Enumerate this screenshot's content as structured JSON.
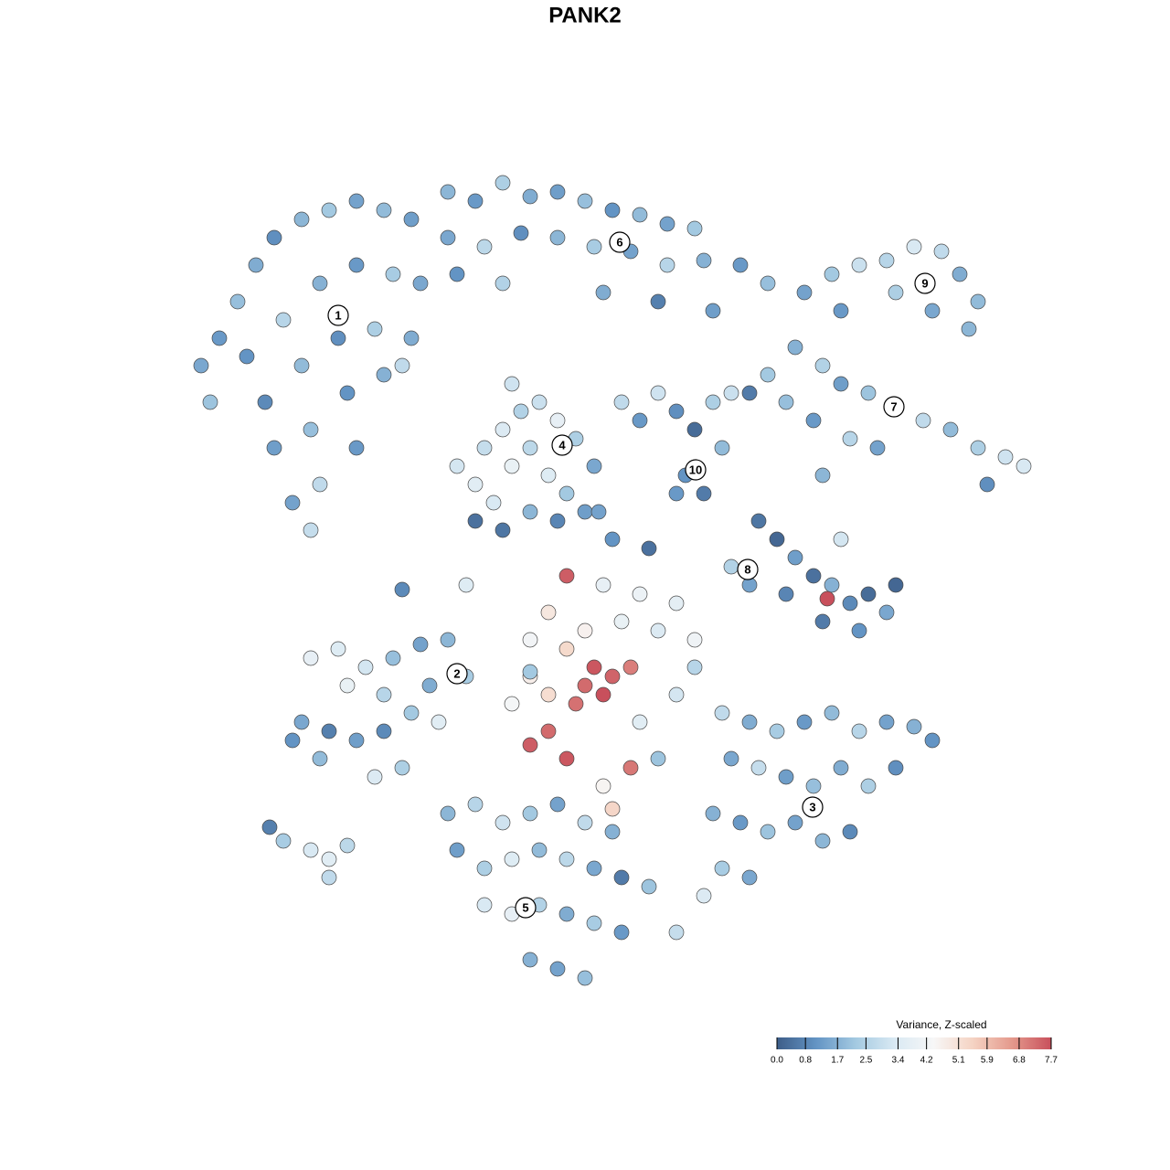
{
  "chart_data": {
    "type": "scatter",
    "title": "PANK2",
    "xlim": [
      0,
      930
    ],
    "ylim": [
      0,
      905
    ],
    "x": [
      20,
      40,
      60,
      80,
      100,
      130,
      160,
      190,
      220,
      250,
      30,
      70,
      110,
      150,
      190,
      230,
      260,
      90,
      130,
      170,
      210,
      250,
      100,
      140,
      180,
      220,
      120,
      150,
      190,
      140,
      290,
      320,
      350,
      380,
      410,
      440,
      470,
      500,
      530,
      560,
      290,
      330,
      370,
      410,
      450,
      490,
      530,
      570,
      610,
      640,
      300,
      350,
      460,
      520,
      580,
      680,
      710,
      740,
      770,
      800,
      830,
      850,
      870,
      720,
      780,
      820,
      860,
      670,
      700,
      720,
      750,
      780,
      810,
      840,
      870,
      900,
      920,
      660,
      690,
      730,
      760,
      620,
      640,
      700,
      880,
      300,
      320,
      330,
      350,
      370,
      390,
      410,
      430,
      450,
      320,
      340,
      360,
      380,
      400,
      420,
      440,
      350,
      380,
      410,
      360,
      480,
      500,
      520,
      540,
      560,
      580,
      550,
      570,
      590,
      600,
      630,
      650,
      670,
      690,
      710,
      730,
      750,
      770,
      780,
      700,
      740,
      620,
      600,
      660,
      720,
      705,
      420,
      460,
      500,
      540,
      400,
      440,
      480,
      520,
      560,
      380,
      420,
      450,
      470,
      440,
      460,
      400,
      380,
      430,
      490,
      490,
      400,
      380,
      420,
      360,
      500,
      540,
      560,
      460,
      470,
      520,
      140,
      170,
      200,
      230,
      260,
      290,
      310,
      180,
      220,
      270,
      130,
      160,
      190,
      220,
      250,
      150,
      210,
      240,
      120,
      280,
      590,
      620,
      650,
      680,
      710,
      740,
      770,
      800,
      820,
      600,
      630,
      660,
      690,
      720,
      750,
      780,
      580,
      610,
      640,
      670,
      700,
      730,
      590,
      620,
      570,
      290,
      320,
      350,
      380,
      410,
      440,
      470,
      300,
      330,
      360,
      390,
      420,
      450,
      480,
      510,
      330,
      360,
      390,
      420,
      450,
      480,
      540,
      380,
      410,
      440,
      95,
      110,
      140,
      160,
      180,
      160,
      240,
      310,
      455,
      510,
      470,
      240,
      380,
      540
    ],
    "y": [
      690,
      720,
      760,
      800,
      830,
      850,
      860,
      870,
      860,
      850,
      650,
      700,
      740,
      780,
      800,
      790,
      780,
      650,
      690,
      720,
      730,
      720,
      600,
      620,
      660,
      680,
      540,
      560,
      600,
      510,
      880,
      870,
      890,
      875,
      880,
      870,
      860,
      855,
      845,
      840,
      830,
      820,
      835,
      830,
      820,
      815,
      800,
      805,
      800,
      780,
      790,
      780,
      770,
      760,
      750,
      770,
      790,
      800,
      805,
      820,
      815,
      790,
      760,
      750,
      770,
      750,
      730,
      710,
      690,
      670,
      660,
      645,
      630,
      620,
      600,
      590,
      580,
      650,
      630,
      610,
      600,
      660,
      680,
      570,
      560,
      580,
      560,
      600,
      620,
      640,
      650,
      630,
      610,
      580,
      520,
      540,
      580,
      600,
      570,
      550,
      530,
      510,
      530,
      520,
      670,
      650,
      630,
      660,
      640,
      620,
      650,
      570,
      550,
      600,
      660,
      520,
      500,
      480,
      460,
      450,
      430,
      440,
      420,
      450,
      410,
      400,
      450,
      470,
      440,
      500,
      435,
      460,
      450,
      440,
      430,
      420,
      400,
      410,
      400,
      390,
      390,
      380,
      360,
      350,
      340,
      330,
      330,
      350,
      320,
      360,
      250,
      290,
      275,
      260,
      320,
      300,
      330,
      360,
      230,
      205,
      260,
      370,
      380,
      360,
      370,
      385,
      390,
      350,
      340,
      330,
      340,
      300,
      290,
      280,
      290,
      310,
      260,
      240,
      250,
      280,
      300,
      310,
      300,
      290,
      300,
      310,
      290,
      300,
      295,
      280,
      260,
      250,
      240,
      230,
      250,
      230,
      250,
      200,
      190,
      180,
      190,
      170,
      180,
      140,
      130,
      110,
      200,
      210,
      190,
      200,
      210,
      190,
      180,
      160,
      140,
      150,
      160,
      150,
      140,
      130,
      120,
      100,
      90,
      100,
      90,
      80,
      70,
      70,
      40,
      30,
      20,
      185,
      170,
      160,
      150,
      165,
      130,
      445,
      450,
      530,
      490,
      500,
      690,
      355,
      550
    ],
    "values": [
      1.5,
      1.2,
      2.0,
      1.6,
      1.0,
      1.8,
      2.2,
      1.4,
      1.9,
      1.3,
      2.1,
      1.1,
      2.6,
      1.7,
      1.2,
      2.3,
      1.5,
      0.9,
      1.9,
      1.0,
      2.4,
      1.6,
      1.3,
      2.0,
      1.1,
      1.7,
      1.4,
      2.8,
      1.2,
      2.9,
      1.8,
      1.2,
      2.4,
      1.6,
      1.3,
      2.0,
      1.1,
      1.9,
      1.4,
      2.2,
      1.5,
      2.7,
      1.0,
      1.8,
      2.3,
      1.4,
      2.6,
      1.7,
      1.2,
      2.0,
      1.1,
      2.5,
      1.6,
      0.7,
      1.3,
      1.4,
      2.2,
      3.0,
      2.6,
      3.3,
      2.8,
      1.6,
      1.9,
      1.2,
      2.4,
      1.5,
      1.8,
      1.7,
      2.5,
      1.3,
      2.1,
      1.5,
      2.8,
      1.9,
      2.4,
      3.1,
      3.3,
      2.0,
      1.2,
      2.6,
      1.4,
      0.6,
      2.2,
      1.8,
      1.0,
      3.2,
      3.6,
      2.9,
      3.4,
      2.5,
      3.0,
      3.8,
      2.4,
      1.5,
      0.4,
      3.3,
      3.9,
      2.7,
      3.5,
      2.2,
      1.3,
      0.5,
      1.8,
      0.8,
      3.1,
      2.8,
      1.2,
      3.1,
      1.0,
      0.3,
      2.4,
      1.1,
      0.6,
      1.9,
      3.0,
      0.5,
      0.2,
      1.3,
      0.4,
      1.7,
      0.9,
      0.3,
      1.5,
      0.2,
      0.6,
      1.1,
      1.4,
      2.5,
      0.8,
      3.2,
      7.7,
      7.5,
      3.8,
      4.0,
      3.7,
      4.9,
      4.6,
      3.9,
      3.4,
      4.1,
      4.2,
      5.3,
      7.6,
      7.4,
      7.3,
      7.7,
      5.2,
      4.7,
      7.2,
      7.0,
      7.1,
      7.3,
      7.5,
      7.6,
      4.3,
      3.6,
      3.2,
      2.6,
      4.5,
      5.4,
      2.1,
      3.8,
      3.5,
      3.2,
      2.0,
      1.4,
      1.8,
      2.3,
      3.9,
      2.6,
      1.6,
      1.5,
      0.7,
      1.3,
      0.9,
      2.2,
      1.9,
      3.4,
      2.4,
      1.1,
      3.6,
      2.8,
      1.6,
      2.3,
      1.2,
      1.9,
      2.6,
      1.4,
      1.7,
      1.1,
      1.5,
      2.9,
      1.3,
      2.0,
      1.6,
      2.4,
      1.0,
      1.7,
      1.2,
      2.1,
      1.4,
      1.8,
      0.9,
      2.3,
      1.5,
      3.4,
      1.8,
      2.6,
      3.1,
      2.2,
      1.4,
      2.8,
      1.7,
      1.3,
      2.4,
      3.5,
      1.9,
      2.7,
      1.5,
      0.6,
      2.1,
      3.3,
      3.8,
      2.5,
      1.6,
      2.3,
      1.2,
      2.9,
      1.7,
      1.4,
      2.0,
      0.7,
      2.3,
      3.3,
      3.6,
      2.7,
      2.8,
      0.9,
      3.5,
      1.4,
      0.4,
      1.1,
      2.8,
      2.2,
      1.2
    ],
    "cluster_labels": [
      {
        "label": "1",
        "x": 170,
        "y": 745
      },
      {
        "label": "2",
        "x": 300,
        "y": 353
      },
      {
        "label": "3",
        "x": 689,
        "y": 207
      },
      {
        "label": "4",
        "x": 415,
        "y": 603
      },
      {
        "label": "5",
        "x": 375,
        "y": 97
      },
      {
        "label": "6",
        "x": 478,
        "y": 825
      },
      {
        "label": "7",
        "x": 778,
        "y": 645
      },
      {
        "label": "8",
        "x": 618,
        "y": 467
      },
      {
        "label": "9",
        "x": 812,
        "y": 780
      },
      {
        "label": "10",
        "x": 561,
        "y": 576
      }
    ],
    "colorbar_title": "Variance, Z-scaled",
    "clim": [
      0,
      7.7
    ],
    "colorticks": [
      {
        "value": 0,
        "label": "0.0"
      },
      0.8,
      1.7,
      2.5,
      3.4,
      4.2,
      5.1,
      5.9,
      6.8,
      7.7
    ],
    "colorscale": [
      "#3d5d88",
      "#6394c4",
      "#a3c9e1",
      "#d9e9f3",
      "#f7f7f7",
      "#f5d3c3",
      "#e4998c",
      "#c8505c"
    ]
  }
}
